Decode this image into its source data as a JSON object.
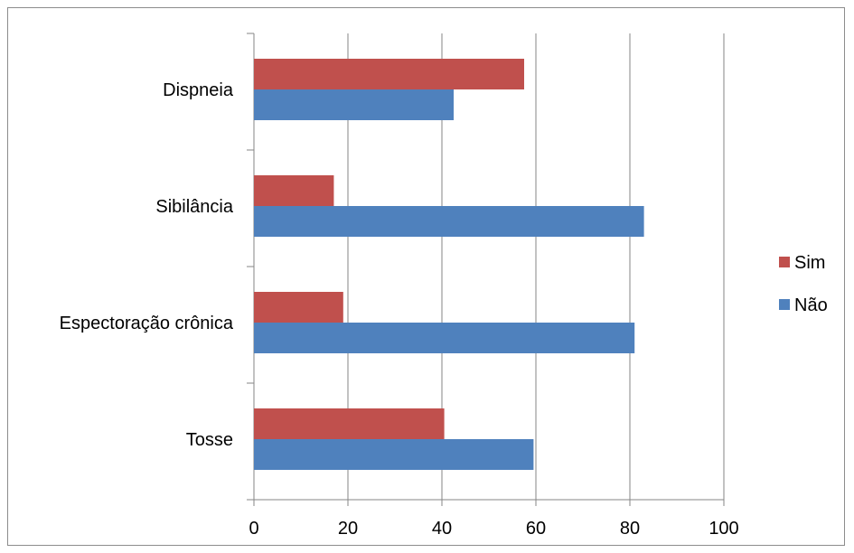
{
  "chart_data": {
    "type": "bar",
    "orientation": "horizontal",
    "categories": [
      "Dispneia",
      "Sibilância",
      "Espectoração crônica",
      "Tosse"
    ],
    "series": [
      {
        "name": "Sim",
        "color": "#c0504d",
        "values": [
          57.5,
          17,
          19,
          40.5
        ]
      },
      {
        "name": "Não",
        "color": "#4f81bd",
        "values": [
          42.5,
          83,
          81,
          59.5
        ]
      }
    ],
    "xlim": [
      0,
      100
    ],
    "xticks": [
      "0",
      "20",
      "40",
      "60",
      "80",
      "100"
    ],
    "grid": "vertical",
    "legend": "right"
  }
}
